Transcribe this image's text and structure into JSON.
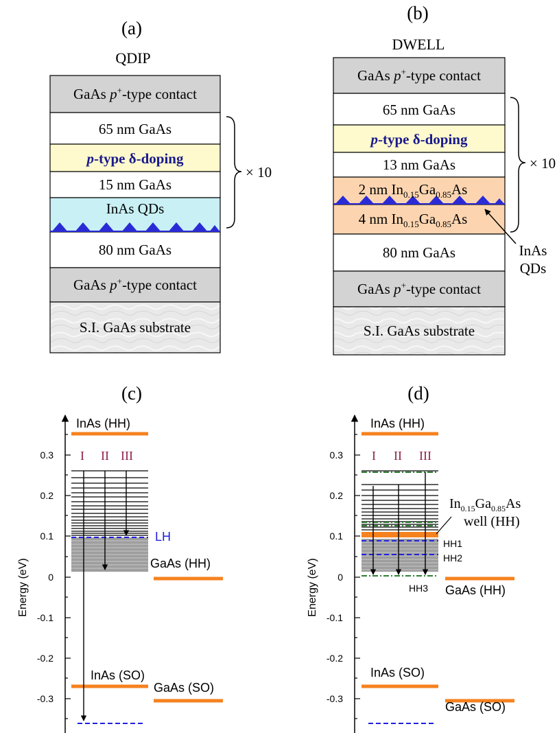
{
  "panel_a": {
    "label": "(a)",
    "title": "QDIP",
    "layers": [
      {
        "text": "GaAs p⁺-type contact",
        "pre": "GaAs ",
        "ital": "p",
        "sup": "+",
        "post": "-type contact",
        "fill": "#d3d3d3"
      },
      {
        "text": "65 nm GaAs",
        "fill": "#ffffff"
      },
      {
        "text": "p-type δ-doping",
        "ital": "p",
        "post": "-type δ-doping",
        "fill": "#fffacd",
        "color": "#1a1a8c",
        "bold": true
      },
      {
        "text": "15 nm GaAs",
        "fill": "#ffffff"
      },
      {
        "text": "InAs QDs",
        "fill": "#c8f0f5"
      },
      {
        "text": "80 nm GaAs",
        "fill": "#ffffff"
      },
      {
        "text": "GaAs p⁺-type contact",
        "pre": "GaAs ",
        "ital": "p",
        "sup": "+",
        "post": "-type contact",
        "fill": "#d3d3d3"
      },
      {
        "text": "S.I. GaAs substrate",
        "fill": "#e8e8e8"
      }
    ],
    "repeat": "× 10"
  },
  "panel_b": {
    "label": "(b)",
    "title": "DWELL",
    "layers": [
      {
        "text": "GaAs p⁺-type contact",
        "pre": "GaAs ",
        "ital": "p",
        "sup": "+",
        "post": "-type contact",
        "fill": "#d3d3d3"
      },
      {
        "text": "65 nm GaAs",
        "fill": "#ffffff"
      },
      {
        "text": "p-type δ-doping",
        "ital": "p",
        "post": "-type δ-doping",
        "fill": "#fffacd",
        "color": "#1a1a8c",
        "bold": true
      },
      {
        "text": "13 nm GaAs",
        "fill": "#ffffff"
      },
      {
        "text": "2 nm In0.15Ga0.85As",
        "fill": "#fcd5b0"
      },
      {
        "text": "4 nm In0.15Ga0.85As",
        "fill": "#fcd5b0"
      },
      {
        "text": "80 nm GaAs",
        "fill": "#ffffff"
      },
      {
        "text": "GaAs p⁺-type contact",
        "pre": "GaAs ",
        "ital": "p",
        "sup": "+",
        "post": "-type contact",
        "fill": "#d3d3d3"
      },
      {
        "text": "S.I. GaAs substrate",
        "fill": "#e8e8e8"
      }
    ],
    "repeat": "× 10",
    "qd_callout": [
      "InAs",
      "QDs"
    ]
  },
  "panel_c": {
    "label": "(c)",
    "yaxis_label": "Energy (eV)",
    "ticks": [
      "0.3",
      "0.2",
      "0.1",
      "0",
      "-0.1",
      "-0.2",
      "-0.3"
    ],
    "labels": {
      "inas_hh": "InAs (HH)",
      "gaas_hh": "GaAs (HH)",
      "inas_so": "InAs (SO)",
      "gaas_so": "GaAs (SO)",
      "lh": "LH",
      "t1": "I",
      "t2": "II",
      "t3": "III"
    }
  },
  "panel_d": {
    "label": "(d)",
    "yaxis_label": "Energy (eV)",
    "ticks": [
      "0.3",
      "0.2",
      "0.1",
      "0",
      "-0.1",
      "-0.2",
      "-0.3"
    ],
    "labels": {
      "inas_hh": "InAs (HH)",
      "gaas_hh": "GaAs (HH)",
      "inas_so": "InAs (SO)",
      "gaas_so": "GaAs (SO)",
      "well_line1": "In0.15Ga0.85As",
      "well_line2": "well (HH)",
      "hh1": "HH1",
      "hh2": "HH2",
      "hh3": "HH3",
      "t1": "I",
      "t2": "II",
      "t3": "III"
    }
  },
  "colors": {
    "orange": "#f5821f",
    "blue_dash": "#1f1fe0",
    "green_dash": "#2e7d32",
    "transition_label": "#8b1e4a",
    "lh_label": "#1f1fe0",
    "qd_blue": "#2b2bd6"
  }
}
